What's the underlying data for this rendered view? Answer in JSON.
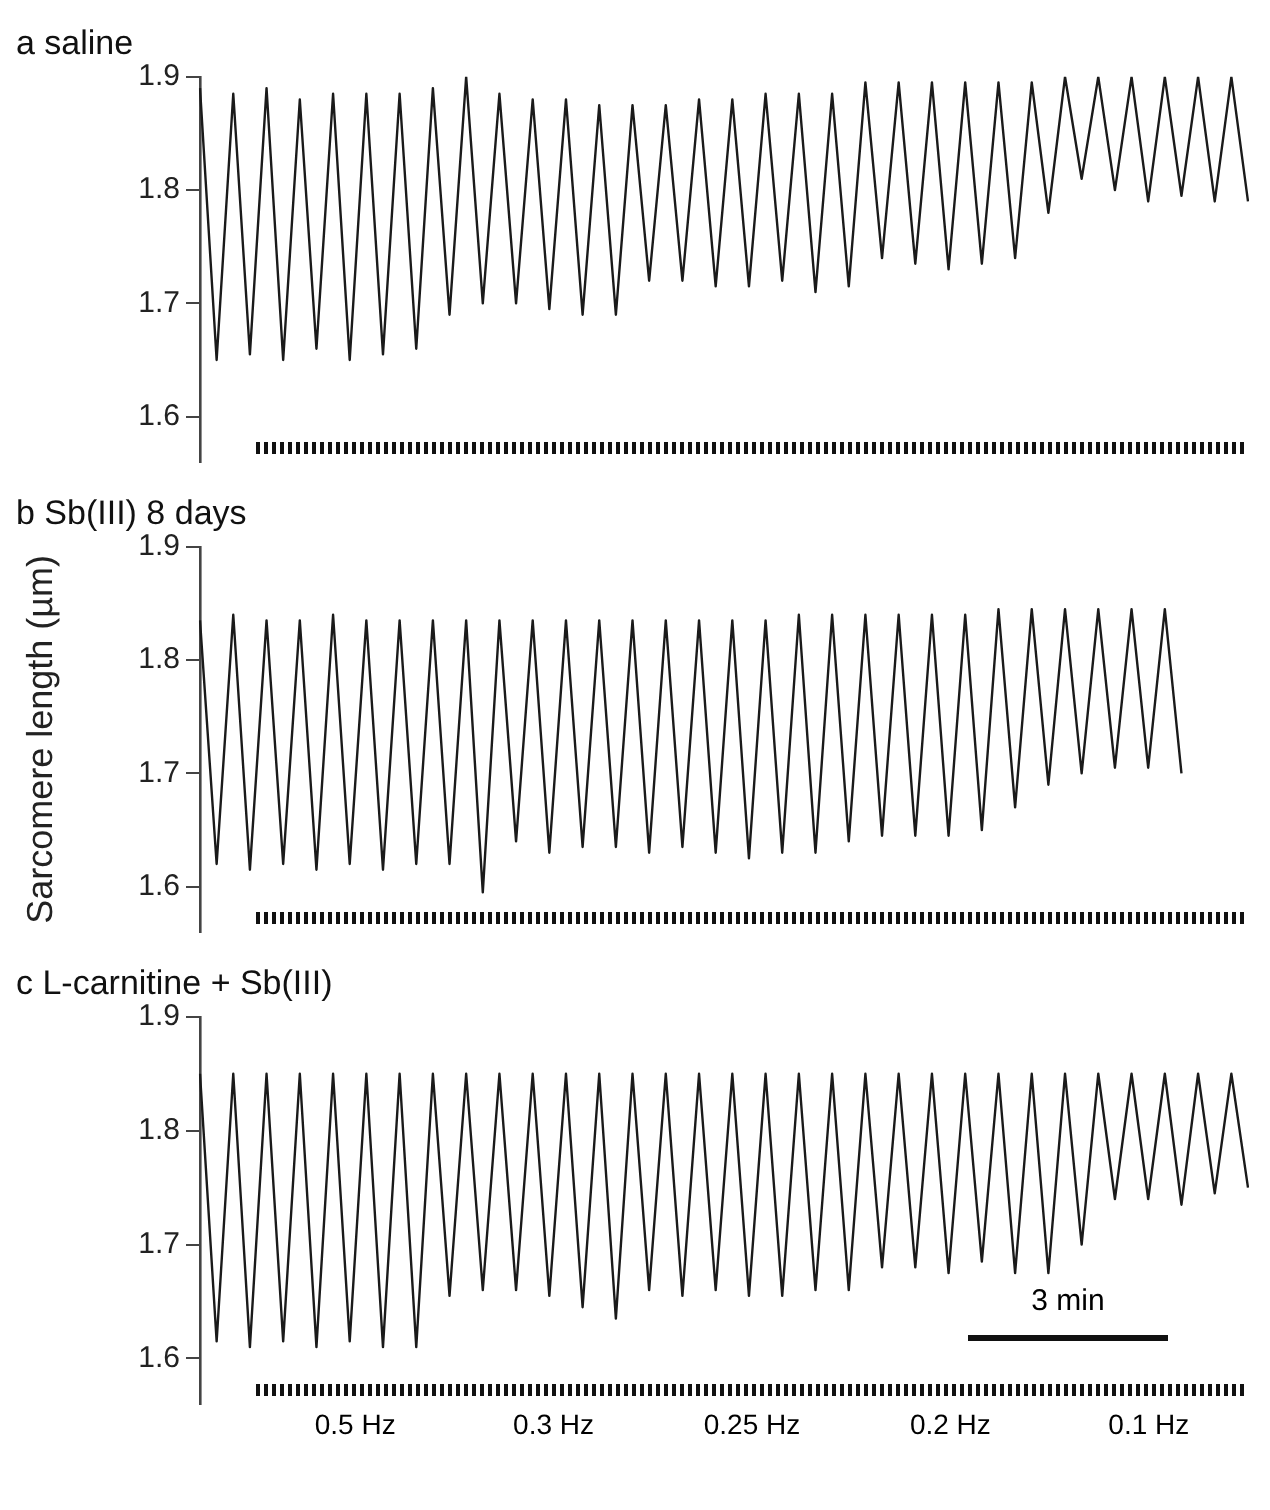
{
  "chart_data": [
    {
      "type": "line",
      "title": "a saline",
      "categories": [
        null,
        null,
        null,
        null,
        null,
        null,
        null,
        null,
        null,
        null,
        null,
        null,
        null,
        null,
        null,
        null,
        null,
        null,
        null,
        null,
        null,
        null,
        null,
        null,
        null,
        null,
        null,
        null,
        null,
        null,
        null,
        null,
        null,
        null,
        null,
        null,
        null,
        null,
        null,
        null,
        null,
        null,
        null,
        null,
        null,
        null,
        null,
        null,
        null,
        null,
        null,
        null,
        null,
        null,
        null,
        null,
        null,
        null,
        null,
        null,
        null,
        null,
        null,
        null
      ],
      "series": [
        {
          "color": "#1a1a1a",
          "values": [
            1.89,
            1.65,
            1.885,
            1.655,
            1.89,
            1.65,
            1.88,
            1.66,
            1.885,
            1.65,
            1.885,
            1.655,
            1.885,
            1.66,
            1.89,
            1.69,
            1.9,
            1.7,
            1.885,
            1.7,
            1.88,
            1.695,
            1.88,
            1.69,
            1.875,
            1.69,
            1.875,
            1.72,
            1.875,
            1.72,
            1.88,
            1.715,
            1.88,
            1.715,
            1.885,
            1.72,
            1.885,
            1.71,
            1.885,
            1.715,
            1.895,
            1.74,
            1.895,
            1.735,
            1.895,
            1.73,
            1.895,
            1.735,
            1.895,
            1.74,
            1.895,
            1.78,
            1.9,
            1.81,
            1.9,
            1.8,
            1.9,
            1.79,
            1.9,
            1.795,
            1.9,
            1.79,
            1.9,
            1.79
          ]
        }
      ],
      "ylim": [
        1.56,
        1.9
      ],
      "yticks": [
        1.6,
        1.7,
        1.8,
        1.9
      ],
      "grid": false,
      "legend": false,
      "tick_labels": "y"
    },
    {
      "type": "line",
      "title": "b Sb(III) 8 days",
      "ylabel": "Sarcomere length (µm)",
      "categories": [
        null,
        null,
        null,
        null,
        null,
        null,
        null,
        null,
        null,
        null,
        null,
        null,
        null,
        null,
        null,
        null,
        null,
        null,
        null,
        null,
        null,
        null,
        null,
        null,
        null,
        null,
        null,
        null,
        null,
        null,
        null,
        null,
        null,
        null,
        null,
        null,
        null,
        null,
        null,
        null,
        null,
        null,
        null,
        null,
        null,
        null,
        null,
        null,
        null,
        null,
        null,
        null,
        null,
        null,
        null,
        null,
        null,
        null,
        null,
        null,
        null,
        null,
        null,
        null
      ],
      "series": [
        {
          "color": "#1a1a1a",
          "values": [
            1.835,
            1.62,
            1.84,
            1.615,
            1.835,
            1.62,
            1.835,
            1.615,
            1.84,
            1.62,
            1.835,
            1.615,
            1.835,
            1.62,
            1.835,
            1.62,
            1.835,
            1.595,
            1.835,
            1.64,
            1.835,
            1.63,
            1.835,
            1.635,
            1.835,
            1.635,
            1.835,
            1.63,
            1.835,
            1.635,
            1.835,
            1.63,
            1.835,
            1.625,
            1.835,
            1.63,
            1.84,
            1.63,
            1.84,
            1.64,
            1.84,
            1.645,
            1.84,
            1.645,
            1.84,
            1.645,
            1.84,
            1.65,
            1.845,
            1.67,
            1.845,
            1.69,
            1.845,
            1.7,
            1.845,
            1.705,
            1.845,
            1.705,
            1.845,
            1.7,
            null,
            null,
            null,
            null
          ]
        }
      ],
      "ylim": [
        1.56,
        1.9
      ],
      "yticks": [
        1.6,
        1.7,
        1.8,
        1.9
      ],
      "grid": false,
      "legend": false,
      "tick_labels": "y"
    },
    {
      "type": "line",
      "title": "c L-carnitine + Sb(III)",
      "categories": [
        null,
        null,
        null,
        null,
        null,
        null,
        null,
        null,
        null,
        null,
        null,
        null,
        null,
        null,
        null,
        null,
        null,
        null,
        null,
        null,
        null,
        null,
        null,
        null,
        null,
        null,
        null,
        null,
        null,
        null,
        null,
        null,
        null,
        null,
        null,
        null,
        null,
        null,
        null,
        null,
        null,
        null,
        null,
        null,
        null,
        null,
        null,
        null,
        null,
        null,
        null,
        null,
        null,
        null,
        null,
        null,
        null,
        null,
        null,
        null,
        null,
        null,
        null,
        null
      ],
      "series": [
        {
          "color": "#1a1a1a",
          "values": [
            1.85,
            1.615,
            1.85,
            1.61,
            1.85,
            1.615,
            1.85,
            1.61,
            1.85,
            1.615,
            1.85,
            1.61,
            1.85,
            1.61,
            1.85,
            1.655,
            1.85,
            1.66,
            1.85,
            1.66,
            1.85,
            1.655,
            1.85,
            1.645,
            1.85,
            1.635,
            1.85,
            1.66,
            1.85,
            1.655,
            1.85,
            1.66,
            1.85,
            1.655,
            1.85,
            1.655,
            1.85,
            1.66,
            1.85,
            1.66,
            1.85,
            1.68,
            1.85,
            1.68,
            1.85,
            1.675,
            1.85,
            1.685,
            1.85,
            1.675,
            1.85,
            1.675,
            1.85,
            1.7,
            1.85,
            1.74,
            1.85,
            1.74,
            1.85,
            1.735,
            1.85,
            1.745,
            1.85,
            1.75
          ]
        }
      ],
      "ylim": [
        1.56,
        1.9
      ],
      "yticks": [
        1.6,
        1.7,
        1.8,
        1.9
      ],
      "grid": false,
      "legend": false,
      "tick_labels": "y",
      "annotations": [
        "3 min",
        "0.5 Hz",
        "0.3 Hz",
        "0.25 Hz",
        "0.2 Hz",
        "0.1 Hz"
      ]
    }
  ]
}
